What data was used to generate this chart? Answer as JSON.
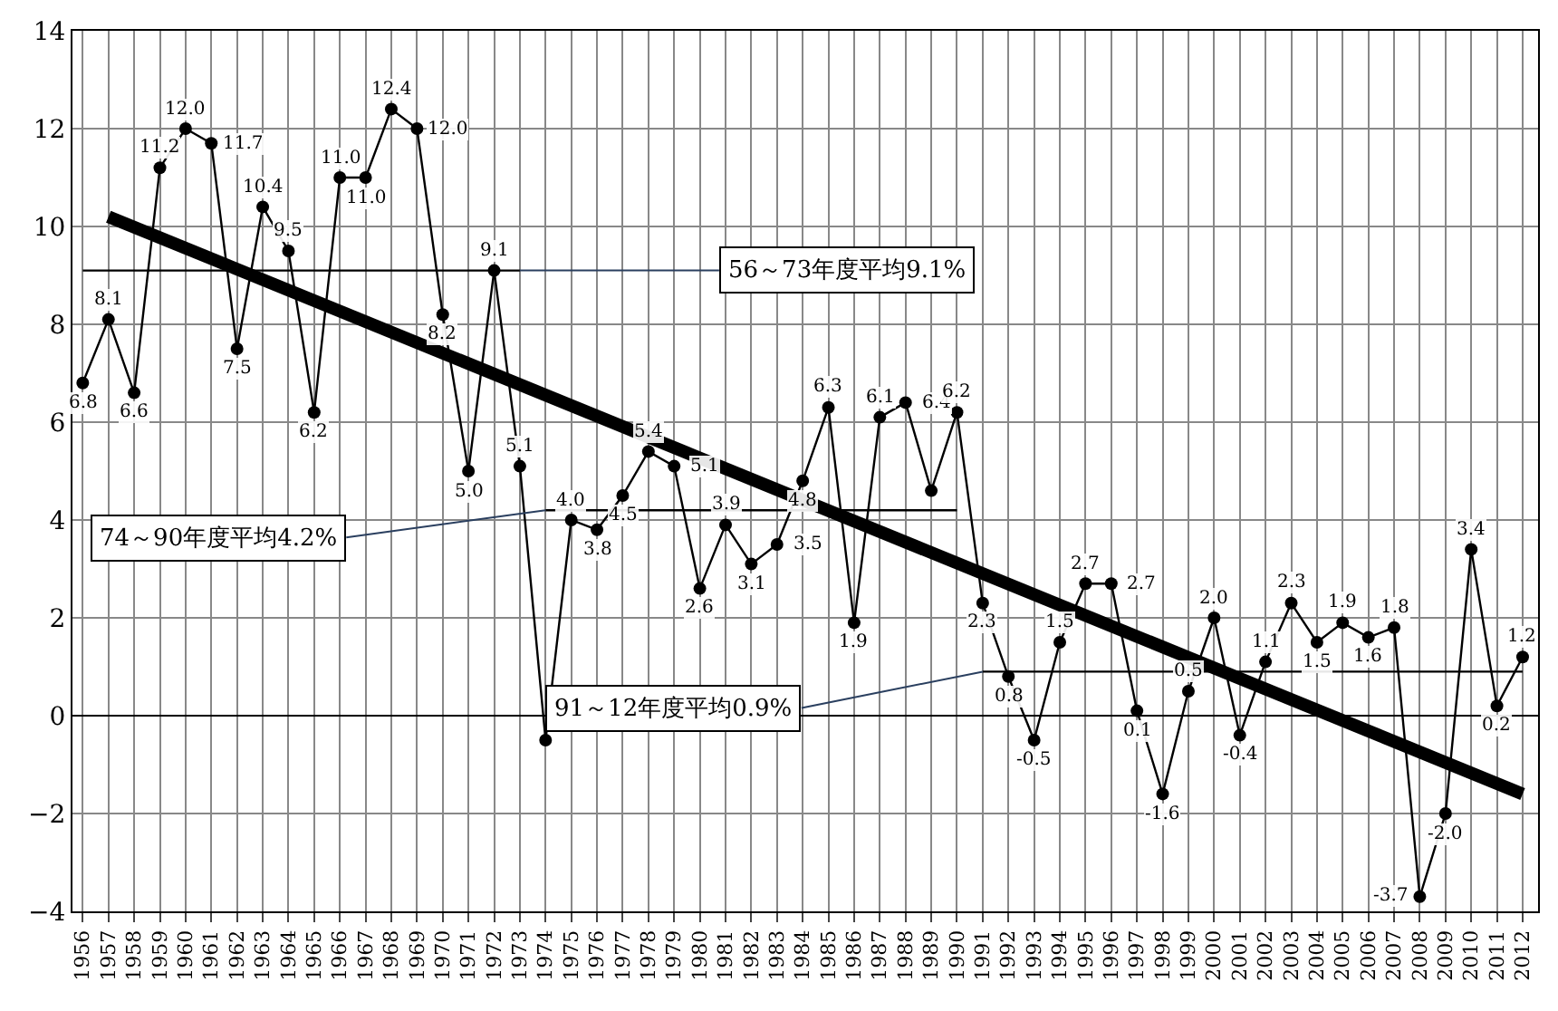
{
  "chart_data": {
    "type": "line",
    "x": [
      1956,
      1957,
      1958,
      1959,
      1960,
      1961,
      1962,
      1963,
      1964,
      1965,
      1966,
      1967,
      1968,
      1969,
      1970,
      1971,
      1972,
      1973,
      1974,
      1975,
      1976,
      1977,
      1978,
      1979,
      1980,
      1981,
      1982,
      1983,
      1984,
      1985,
      1986,
      1987,
      1988,
      1989,
      1990,
      1991,
      1992,
      1993,
      1994,
      1995,
      1996,
      1997,
      1998,
      1999,
      2000,
      2001,
      2002,
      2003,
      2004,
      2005,
      2006,
      2007,
      2008,
      2009,
      2010,
      2011,
      2012
    ],
    "series": [
      {
        "color": "#000000",
        "marker": "circle",
        "values": [
          6.8,
          8.1,
          6.6,
          11.2,
          12.0,
          11.7,
          7.5,
          10.4,
          9.5,
          6.2,
          11.0,
          11.0,
          12.4,
          12.0,
          8.2,
          5.0,
          9.1,
          5.1,
          -0.5,
          4.0,
          3.8,
          4.5,
          5.4,
          5.1,
          2.6,
          3.9,
          3.1,
          3.5,
          4.8,
          6.3,
          1.9,
          6.1,
          6.4,
          4.6,
          6.2,
          2.3,
          0.8,
          -0.5,
          1.5,
          2.7,
          2.7,
          0.1,
          -1.6,
          0.5,
          2.0,
          -0.4,
          1.1,
          2.3,
          1.5,
          1.9,
          1.6,
          1.8,
          -3.7,
          -2.0,
          3.4,
          0.2,
          1.2
        ],
        "value_labels": [
          "6.8",
          "8.1",
          "6.6",
          "11.2",
          "12.0",
          "11.7",
          "7.5",
          "10.4",
          "9.5",
          "6.2",
          "11.0",
          "11.0",
          "12.4",
          "12.0",
          "8.2",
          "5.0",
          "9.1",
          "5.1",
          null,
          "4.0",
          "3.8",
          "4.5",
          "5.4",
          "5.1",
          "2.6",
          "3.9",
          "3.1",
          "3.5",
          "4.8",
          "6.3",
          "1.9",
          "6.1",
          "6.4",
          null,
          "6.2",
          "2.3",
          "0.8",
          "-0.5",
          "1.5",
          "2.7",
          "2.7",
          "0.1",
          "-1.6",
          "0.5",
          "2.0",
          "-0.4",
          "1.1",
          "2.3",
          "1.5",
          "1.9",
          "1.6",
          "1.8",
          "-3.7",
          "-2.0",
          "3.4",
          "0.2",
          "1.2"
        ]
      },
      {
        "color": "#000000",
        "marker": "none",
        "x": [
          1956,
          1973
        ],
        "values": [
          9.1,
          9.1
        ]
      },
      {
        "color": "#000000",
        "marker": "none",
        "x": [
          1974,
          1990
        ],
        "values": [
          4.2,
          4.2
        ]
      },
      {
        "color": "#000000",
        "marker": "none",
        "x": [
          1991,
          2012
        ],
        "values": [
          0.9,
          0.9
        ]
      },
      {
        "color": "#000000",
        "marker": "none",
        "x": [
          1957,
          2012
        ],
        "values": [
          10.2,
          -1.6
        ]
      }
    ],
    "annotations": [
      {
        "text": "56～73年度平均9.1%",
        "x": 1973,
        "y": 9.1
      },
      {
        "text": "74～90年度平均4.2%",
        "x": 1974,
        "y": 4.2
      },
      {
        "text": "91～12年度平均0.9%",
        "x": 1991,
        "y": 0.9
      }
    ],
    "xlim": [
      1955.6,
      2012.6
    ],
    "xticks": [
      1956,
      1957,
      1958,
      1959,
      1960,
      1961,
      1962,
      1963,
      1964,
      1965,
      1966,
      1967,
      1968,
      1969,
      1970,
      1971,
      1972,
      1973,
      1974,
      1975,
      1976,
      1977,
      1978,
      1979,
      1980,
      1981,
      1982,
      1983,
      1984,
      1985,
      1986,
      1987,
      1988,
      1989,
      1990,
      1991,
      1992,
      1993,
      1994,
      1995,
      1996,
      1997,
      1998,
      1999,
      2000,
      2001,
      2002,
      2003,
      2004,
      2005,
      2006,
      2007,
      2008,
      2009,
      2010,
      2011,
      2012
    ],
    "ylim": [
      -4,
      14
    ],
    "yticks": [
      -4,
      -2,
      0,
      2,
      4,
      6,
      8,
      10,
      12,
      14
    ],
    "grid": true
  }
}
